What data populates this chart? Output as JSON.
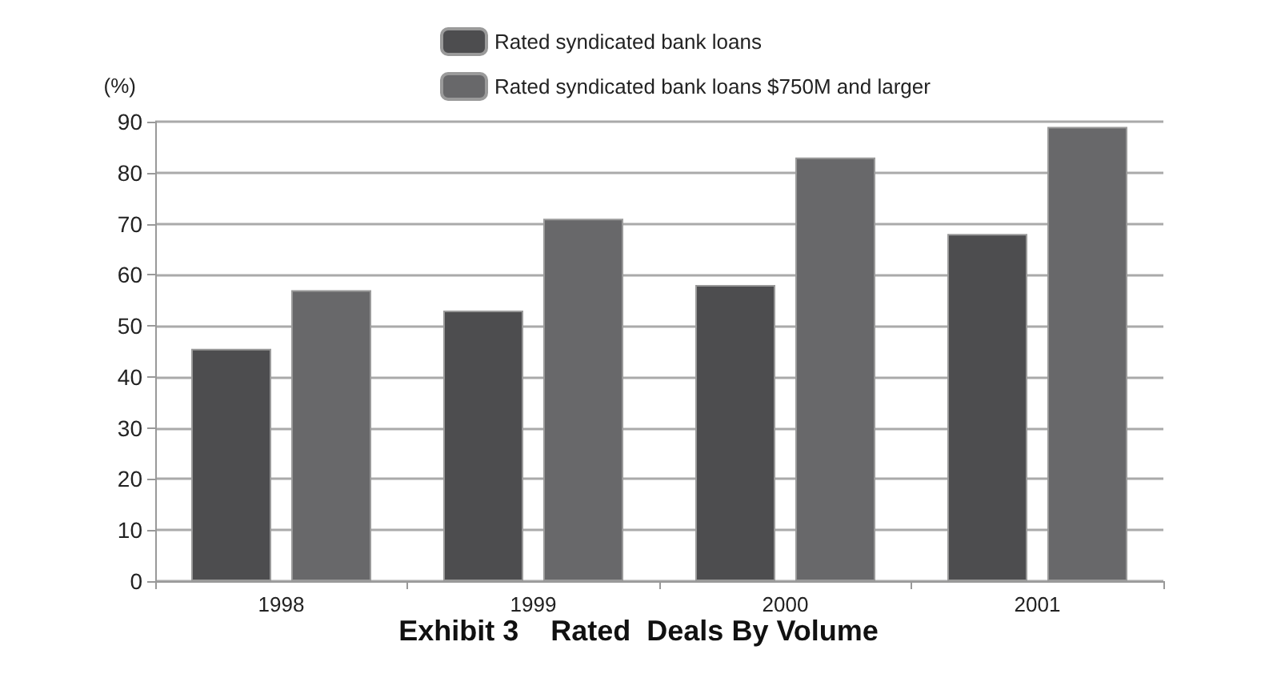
{
  "chart_data": {
    "type": "bar",
    "title": "Exhibit 3    Rated  Deals By Volume",
    "ylabel": "(%)",
    "categories": [
      "1998",
      "1999",
      "2000",
      "2001"
    ],
    "series": [
      {
        "name": "Rated syndicated bank loans",
        "color": "#4d4d4f",
        "values": [
          45.5,
          53,
          58,
          68
        ]
      },
      {
        "name": "Rated syndicated bank loans $750M and larger",
        "color": "#68686a",
        "values": [
          57,
          71,
          83,
          89
        ]
      }
    ],
    "ylim": [
      0,
      90
    ],
    "yticks": [
      0,
      10,
      20,
      30,
      40,
      50,
      60,
      70,
      80,
      90
    ],
    "grid": "y",
    "legend": "top"
  }
}
